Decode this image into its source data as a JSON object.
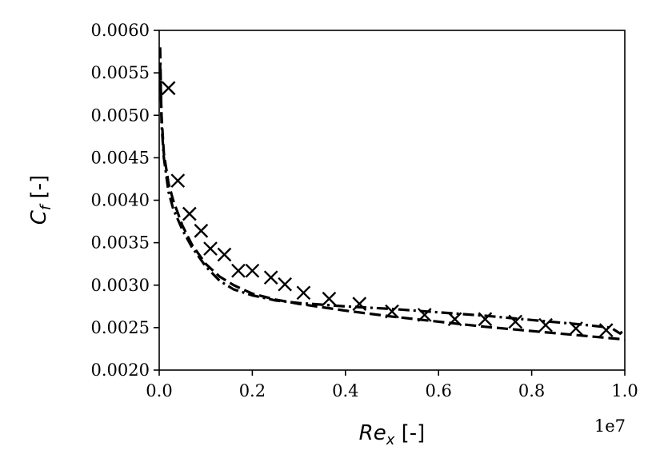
{
  "chart_data": {
    "type": "line",
    "xlabel_main": "Re",
    "xlabel_sub": "x",
    "xlabel_unit": " [-]",
    "ylabel_main": "C",
    "ylabel_sub": "f",
    "ylabel_unit": " [-]",
    "x_offset_label": "1e7",
    "xlim": [
      0.0,
      1.0
    ],
    "ylim": [
      0.002,
      0.006
    ],
    "x_ticks": [
      {
        "value": 0.0,
        "label": "0.0"
      },
      {
        "value": 0.2,
        "label": "0.2"
      },
      {
        "value": 0.4,
        "label": "0.4"
      },
      {
        "value": 0.6,
        "label": "0.6"
      },
      {
        "value": 0.8,
        "label": "0.8"
      },
      {
        "value": 1.0,
        "label": "1.0"
      }
    ],
    "y_ticks": [
      {
        "value": 0.002,
        "label": "0.0020"
      },
      {
        "value": 0.0025,
        "label": "0.0025"
      },
      {
        "value": 0.003,
        "label": "0.0030"
      },
      {
        "value": 0.0035,
        "label": "0.0035"
      },
      {
        "value": 0.004,
        "label": "0.0040"
      },
      {
        "value": 0.0045,
        "label": "0.0045"
      },
      {
        "value": 0.005,
        "label": "0.0050"
      },
      {
        "value": 0.0055,
        "label": "0.0055"
      },
      {
        "value": 0.006,
        "label": "0.0060"
      }
    ],
    "grid": false,
    "series": [
      {
        "style": "dashed",
        "color": "#000000",
        "x": [
          0.002,
          0.005,
          0.01,
          0.02,
          0.03,
          0.05,
          0.07,
          0.1,
          0.13,
          0.16,
          0.2,
          0.25,
          0.3,
          0.4,
          0.5,
          0.6,
          0.7,
          0.8,
          0.9,
          1.0
        ],
        "y": [
          0.0056,
          0.005,
          0.00455,
          0.0042,
          0.004,
          0.0037,
          0.00348,
          0.00325,
          0.0031,
          0.003,
          0.0029,
          0.00283,
          0.00278,
          0.0027,
          0.00263,
          0.00257,
          0.00251,
          0.00246,
          0.00241,
          0.00236
        ]
      },
      {
        "style": "dashdot",
        "color": "#000000",
        "x": [
          0.002,
          0.005,
          0.01,
          0.02,
          0.03,
          0.05,
          0.07,
          0.1,
          0.13,
          0.16,
          0.2,
          0.25,
          0.3,
          0.4,
          0.5,
          0.6,
          0.7,
          0.8,
          0.9,
          0.97,
          0.99,
          1.0
        ],
        "y": [
          0.0058,
          0.0049,
          0.0045,
          0.0041,
          0.0039,
          0.00365,
          0.00345,
          0.00322,
          0.00305,
          0.00295,
          0.00288,
          0.00282,
          0.00279,
          0.00275,
          0.00272,
          0.00268,
          0.00264,
          0.00259,
          0.00254,
          0.0025,
          0.00243,
          0.00248
        ]
      }
    ],
    "markers": {
      "style": "x",
      "color": "#000000",
      "x": [
        0.02,
        0.04,
        0.065,
        0.09,
        0.11,
        0.14,
        0.17,
        0.2,
        0.24,
        0.27,
        0.31,
        0.365,
        0.43,
        0.5,
        0.57,
        0.635,
        0.7,
        0.765,
        0.83,
        0.895,
        0.96
      ],
      "y": [
        0.00532,
        0.00423,
        0.00384,
        0.00364,
        0.00343,
        0.00336,
        0.00317,
        0.00317,
        0.00309,
        0.00301,
        0.00291,
        0.00284,
        0.00278,
        0.00269,
        0.00265,
        0.0026,
        0.0026,
        0.00257,
        0.00253,
        0.00249,
        0.00247
      ]
    }
  }
}
